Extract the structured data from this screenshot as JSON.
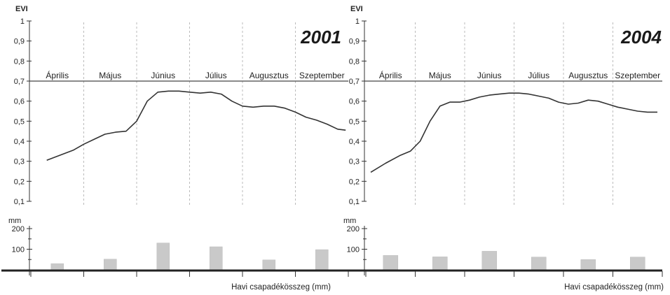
{
  "chart_data": [
    {
      "type": "line",
      "title": "2001",
      "ylabel": "EVI",
      "ylim": [
        0.1,
        1
      ],
      "yticks": [
        "0,1",
        "0,2",
        "0,3",
        "0,4",
        "0,5",
        "0,6",
        "0,7",
        "0,8",
        "0,9",
        "1"
      ],
      "categories": [
        "Április",
        "Május",
        "Június",
        "Július",
        "Augusztus",
        "Szeptember"
      ],
      "series": [
        {
          "x": [
            0.3,
            0.6,
            0.8,
            1.0,
            1.2,
            1.4,
            1.6,
            1.8,
            2.0,
            2.2,
            2.4,
            2.6,
            2.8,
            3.0,
            3.2,
            3.4,
            3.6,
            3.8,
            4.0,
            4.2,
            4.4,
            4.6,
            4.8,
            5.0,
            5.2,
            5.4,
            5.6,
            5.8,
            5.95
          ],
          "values": [
            0.305,
            0.335,
            0.355,
            0.385,
            0.41,
            0.435,
            0.445,
            0.45,
            0.5,
            0.6,
            0.645,
            0.65,
            0.65,
            0.645,
            0.64,
            0.645,
            0.635,
            0.6,
            0.575,
            0.57,
            0.575,
            0.575,
            0.565,
            0.545,
            0.52,
            0.505,
            0.485,
            0.46,
            0.455
          ]
        }
      ],
      "bars": {
        "ylabel": "mm",
        "ylim": [
          0,
          200
        ],
        "yticks": [
          "100",
          "200"
        ],
        "xlabel": "Havi csapadékösszeg (mm)",
        "values": [
          30,
          52,
          130,
          112,
          48,
          98
        ]
      }
    },
    {
      "type": "line",
      "title": "2004",
      "ylabel": "EVI",
      "ylim": [
        0.1,
        1
      ],
      "yticks": [
        "0,1",
        "0,2",
        "0,3",
        "0,4",
        "0,5",
        "0,6",
        "0,7",
        "0,8",
        "0,9",
        "1"
      ],
      "categories": [
        "Április",
        "Május",
        "Június",
        "Július",
        "Augusztus",
        "Szeptember"
      ],
      "series": [
        {
          "x": [
            0.1,
            0.4,
            0.7,
            0.9,
            1.1,
            1.3,
            1.5,
            1.7,
            1.9,
            2.1,
            2.3,
            2.5,
            2.7,
            2.9,
            3.1,
            3.3,
            3.5,
            3.7,
            3.9,
            4.1,
            4.3,
            4.5,
            4.7,
            4.9,
            5.1,
            5.3,
            5.5,
            5.7,
            5.9
          ],
          "values": [
            0.245,
            0.29,
            0.33,
            0.35,
            0.4,
            0.5,
            0.575,
            0.595,
            0.595,
            0.605,
            0.62,
            0.63,
            0.635,
            0.64,
            0.64,
            0.635,
            0.625,
            0.615,
            0.595,
            0.585,
            0.59,
            0.605,
            0.6,
            0.585,
            0.57,
            0.56,
            0.55,
            0.545,
            0.545
          ]
        }
      ],
      "bars": {
        "ylabel": "mm",
        "ylim": [
          0,
          200
        ],
        "yticks": [
          "100",
          "200"
        ],
        "xlabel": "Havi csapadékösszeg (mm)",
        "values": [
          70,
          63,
          90,
          62,
          50,
          62
        ]
      }
    }
  ]
}
